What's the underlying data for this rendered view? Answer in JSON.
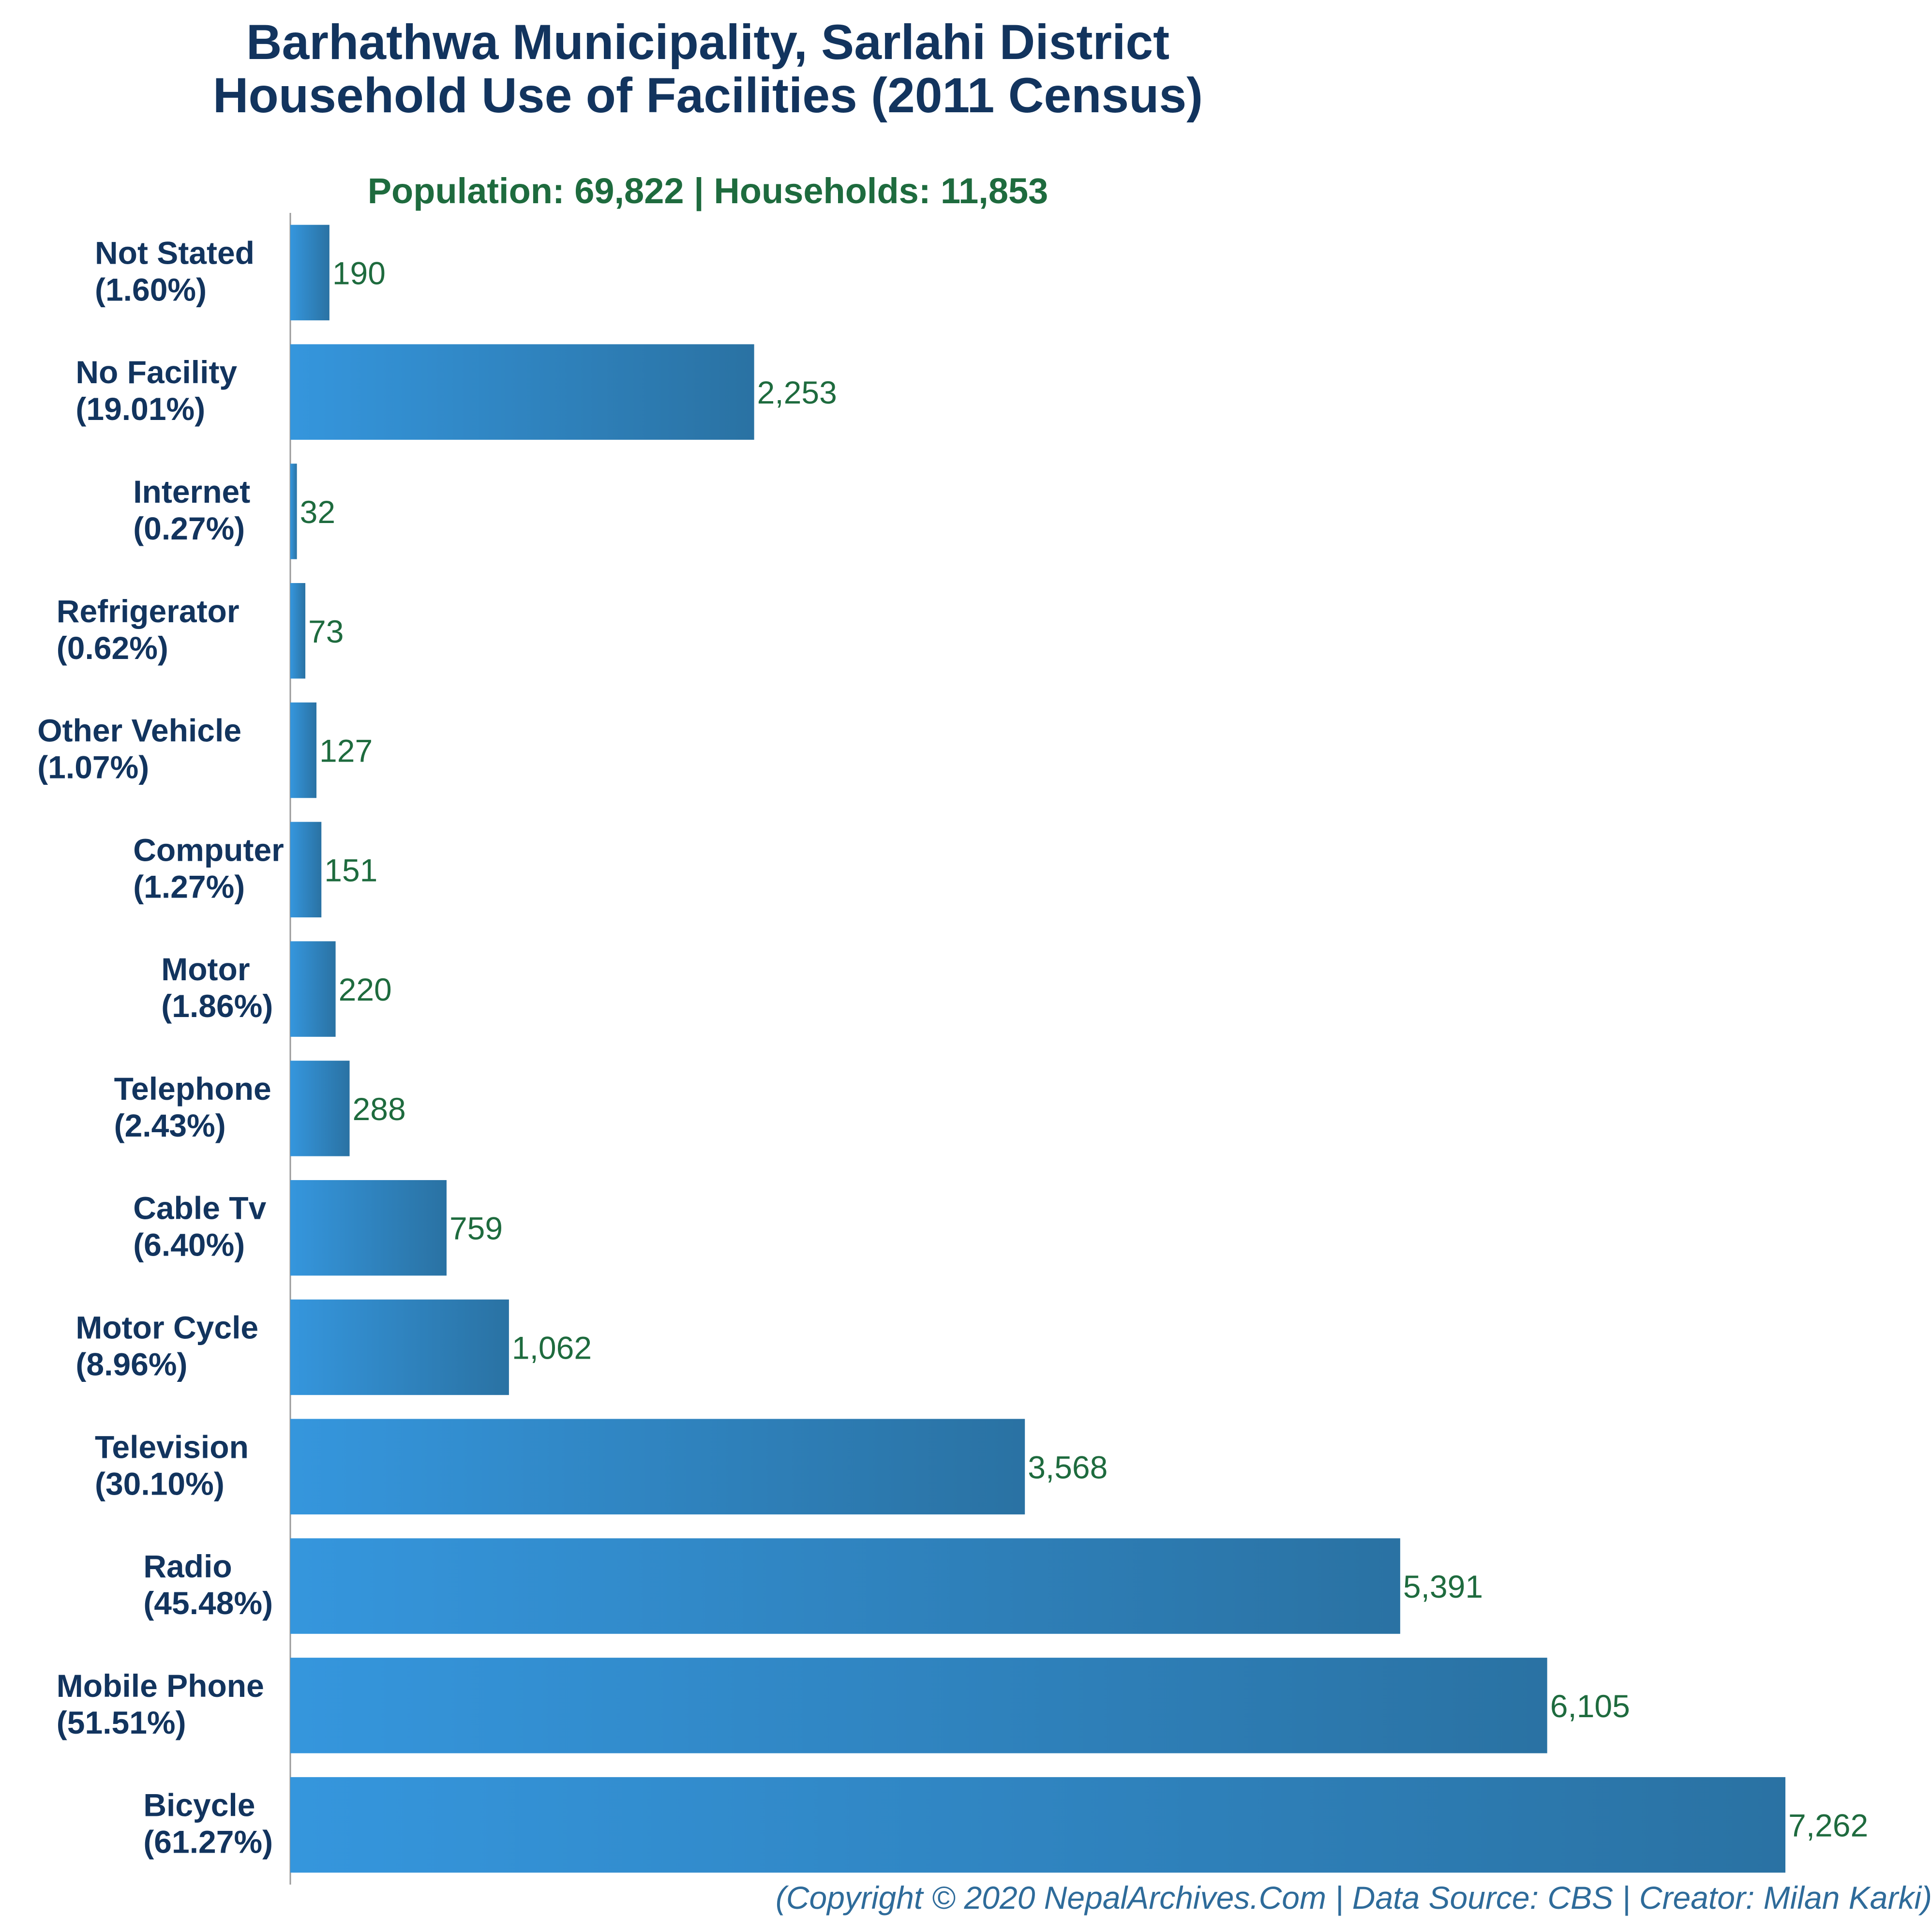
{
  "chart_data": {
    "type": "bar",
    "orientation": "horizontal",
    "title_lines": [
      "Barhathwa Municipality, Sarlahi District",
      "Household Use of Facilities (2011 Census)"
    ],
    "subtitle": "Population: 69,822 | Households: 11,853",
    "categories": [
      {
        "name": "Not Stated",
        "percent": "(1.60%)"
      },
      {
        "name": "No Facility",
        "percent": "(19.01%)"
      },
      {
        "name": "Internet",
        "percent": "(0.27%)"
      },
      {
        "name": "Refrigerator",
        "percent": "(0.62%)"
      },
      {
        "name": "Other Vehicle",
        "percent": "(1.07%)"
      },
      {
        "name": "Computer",
        "percent": "(1.27%)"
      },
      {
        "name": "Motor",
        "percent": "(1.86%)"
      },
      {
        "name": "Telephone",
        "percent": "(2.43%)"
      },
      {
        "name": "Cable Tv",
        "percent": "(6.40%)"
      },
      {
        "name": "Motor Cycle",
        "percent": "(8.96%)"
      },
      {
        "name": "Television",
        "percent": "(30.10%)"
      },
      {
        "name": "Radio",
        "percent": "(45.48%)"
      },
      {
        "name": "Mobile Phone",
        "percent": "(51.51%)"
      },
      {
        "name": "Bicycle",
        "percent": "(61.27%)"
      }
    ],
    "values": [
      190,
      2253,
      32,
      73,
      127,
      151,
      220,
      288,
      759,
      1062,
      3568,
      5391,
      6105,
      7262
    ],
    "value_labels": [
      "190",
      "2,253",
      "32",
      "73",
      "127",
      "151",
      "220",
      "288",
      "759",
      "1,062",
      "3,568",
      "5,391",
      "6,105",
      "7,262"
    ],
    "xlim": [
      0,
      7262
    ],
    "grid": false,
    "colors": {
      "bar_start": "#3596dd",
      "bar_end": "#2a72a3",
      "title": "#12345e",
      "subtitle": "#1e6b3e",
      "value_text": "#1e6b3e",
      "footer": "#2e6b9a",
      "axis": "#999999"
    }
  },
  "footer": "(Copyright © 2020 NepalArchives.Com | Data Source: CBS | Creator: Milan Karki)"
}
